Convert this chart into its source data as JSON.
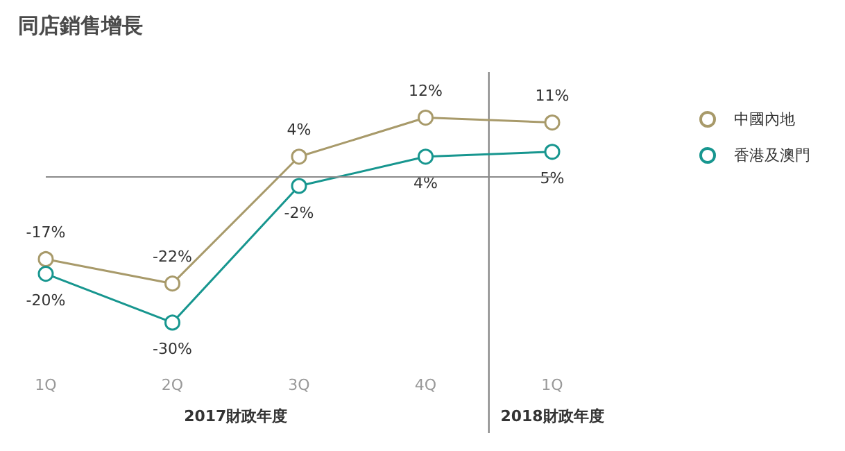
{
  "chart_data": {
    "type": "line",
    "title": "同店銷售增長",
    "categories": [
      "1Q",
      "2Q",
      "3Q",
      "4Q",
      "1Q"
    ],
    "series": [
      {
        "name": "中國內地",
        "color": "#a89a6a",
        "values": [
          -17,
          -22,
          4,
          12,
          11
        ],
        "value_labels": [
          "-17%",
          "-22%",
          "4%",
          "12%",
          "11%"
        ]
      },
      {
        "name": "香港及澳門",
        "color": "#17968f",
        "values": [
          -20,
          -30,
          -2,
          4,
          5
        ],
        "value_labels": [
          "-20%",
          "-30%",
          "-2%",
          "4%",
          "5%"
        ]
      }
    ],
    "ref_lines": [
      {
        "axis": "y",
        "value": 0,
        "color": "#8a8a8a"
      }
    ],
    "annotations": [
      "2017財政年度",
      "2018財政年度"
    ],
    "marker": "circle",
    "legend": "top right",
    "grid": false
  }
}
